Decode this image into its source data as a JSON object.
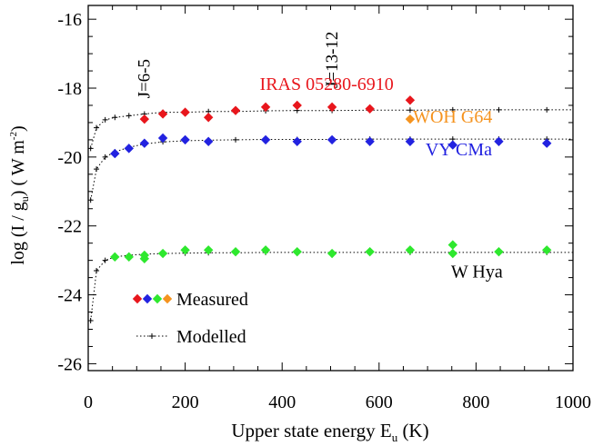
{
  "chart_data": {
    "type": "scatter",
    "xlabel_main": "Upper state energy E",
    "xlabel_sub": "u",
    "xlabel_unit": " (K)",
    "ylabel_pre": "log (I / g",
    "ylabel_sub": "u",
    "ylabel_mid": ") ( W m",
    "ylabel_sup": "-2",
    "ylabel_post": ")",
    "xlim": [
      0,
      1000
    ],
    "ylim": [
      -26.2,
      -15.6
    ],
    "x_ticks": [
      0,
      200,
      400,
      600,
      800,
      1000
    ],
    "x_tick_labels": [
      "0",
      "200",
      "400",
      "600",
      "800",
      "1000"
    ],
    "y_ticks": [
      -16,
      -18,
      -20,
      -22,
      -24,
      -26
    ],
    "y_tick_labels": [
      "-16",
      "-18",
      "-20",
      "-22",
      "-24",
      "-26"
    ],
    "annotations": [
      {
        "text": "J=6-5",
        "x": 115,
        "y": -18.3
      },
      {
        "text": "J=13-12",
        "x": 503,
        "y": -18.0
      }
    ],
    "series": [
      {
        "name": "IRAS 05280-6910",
        "color": "#e8161c",
        "label_pos": {
          "x": 630,
          "y": -18.05
        },
        "x": [
          116,
          154,
          200,
          248,
          304,
          366,
          431,
          503,
          581,
          664
        ],
        "y": [
          -18.9,
          -18.75,
          -18.7,
          -18.85,
          -18.65,
          -18.55,
          -18.5,
          -18.55,
          -18.6,
          -18.35
        ]
      },
      {
        "name": "WOH G64",
        "color": "#f5931e",
        "label_pos": {
          "x": 670,
          "y": -19.0
        },
        "x": [
          664
        ],
        "y": [
          -18.9
        ]
      },
      {
        "name": "VY CMa",
        "color": "#2222e0",
        "label_pos": {
          "x": 833,
          "y": -19.95
        },
        "x": [
          55,
          84,
          116,
          154,
          200,
          248,
          366,
          431,
          503,
          581,
          664,
          752,
          847,
          946
        ],
        "y": [
          -19.9,
          -19.75,
          -19.6,
          -19.45,
          -19.5,
          -19.55,
          -19.5,
          -19.55,
          -19.5,
          -19.55,
          -19.55,
          -19.65,
          -19.55,
          -19.6
        ]
      },
      {
        "name": "W Hya",
        "color": "#2ee82e",
        "label_pos": {
          "x": 855,
          "y": -23.5
        },
        "x": [
          55,
          84,
          116,
          116,
          154,
          200,
          248,
          304,
          366,
          431,
          503,
          581,
          664,
          752,
          752,
          847,
          946
        ],
        "y": [
          -22.9,
          -22.9,
          -22.85,
          -22.95,
          -22.8,
          -22.7,
          -22.7,
          -22.75,
          -22.7,
          -22.75,
          -22.8,
          -22.75,
          -22.7,
          -22.55,
          -22.8,
          -22.75,
          -22.7
        ]
      }
    ],
    "model": {
      "name": "Modelled",
      "upper_x": [
        5,
        17,
        35,
        55,
        84,
        116,
        154,
        200,
        248,
        304,
        366,
        431,
        503,
        581,
        664,
        752,
        847,
        946
      ],
      "upper_y": [
        -19.75,
        -19.15,
        -18.92,
        -18.85,
        -18.8,
        -18.75,
        -18.7,
        -18.7,
        -18.68,
        -18.68,
        -18.66,
        -18.65,
        -18.65,
        -18.64,
        -18.64,
        -18.63,
        -18.63,
        -18.63
      ],
      "middle_x": [
        5,
        17,
        35,
        55,
        84,
        116,
        154,
        200,
        248,
        304,
        366,
        431,
        503,
        581,
        664,
        752,
        847,
        946
      ],
      "middle_y": [
        -21.25,
        -20.35,
        -20.0,
        -19.85,
        -19.72,
        -19.62,
        -19.56,
        -19.53,
        -19.51,
        -19.5,
        -19.49,
        -19.49,
        -19.49,
        -19.48,
        -19.48,
        -19.48,
        -19.48,
        -19.48
      ],
      "lower_x": [
        5,
        17,
        35,
        55,
        84,
        116,
        154,
        200,
        248,
        304,
        366,
        431,
        503,
        581,
        664,
        752,
        847,
        946
      ],
      "lower_y": [
        -24.75,
        -23.3,
        -23.0,
        -22.9,
        -22.85,
        -22.82,
        -22.8,
        -22.79,
        -22.78,
        -22.78,
        -22.77,
        -22.77,
        -22.77,
        -22.77,
        -22.77,
        -22.77,
        -22.77,
        -22.77
      ]
    },
    "legend": {
      "placement": "bottom-left",
      "measured_label": "Measured",
      "measured_colors": [
        "#e8161c",
        "#2222e0",
        "#2ee82e",
        "#f5931e"
      ],
      "modelled_label": "Modelled"
    }
  }
}
